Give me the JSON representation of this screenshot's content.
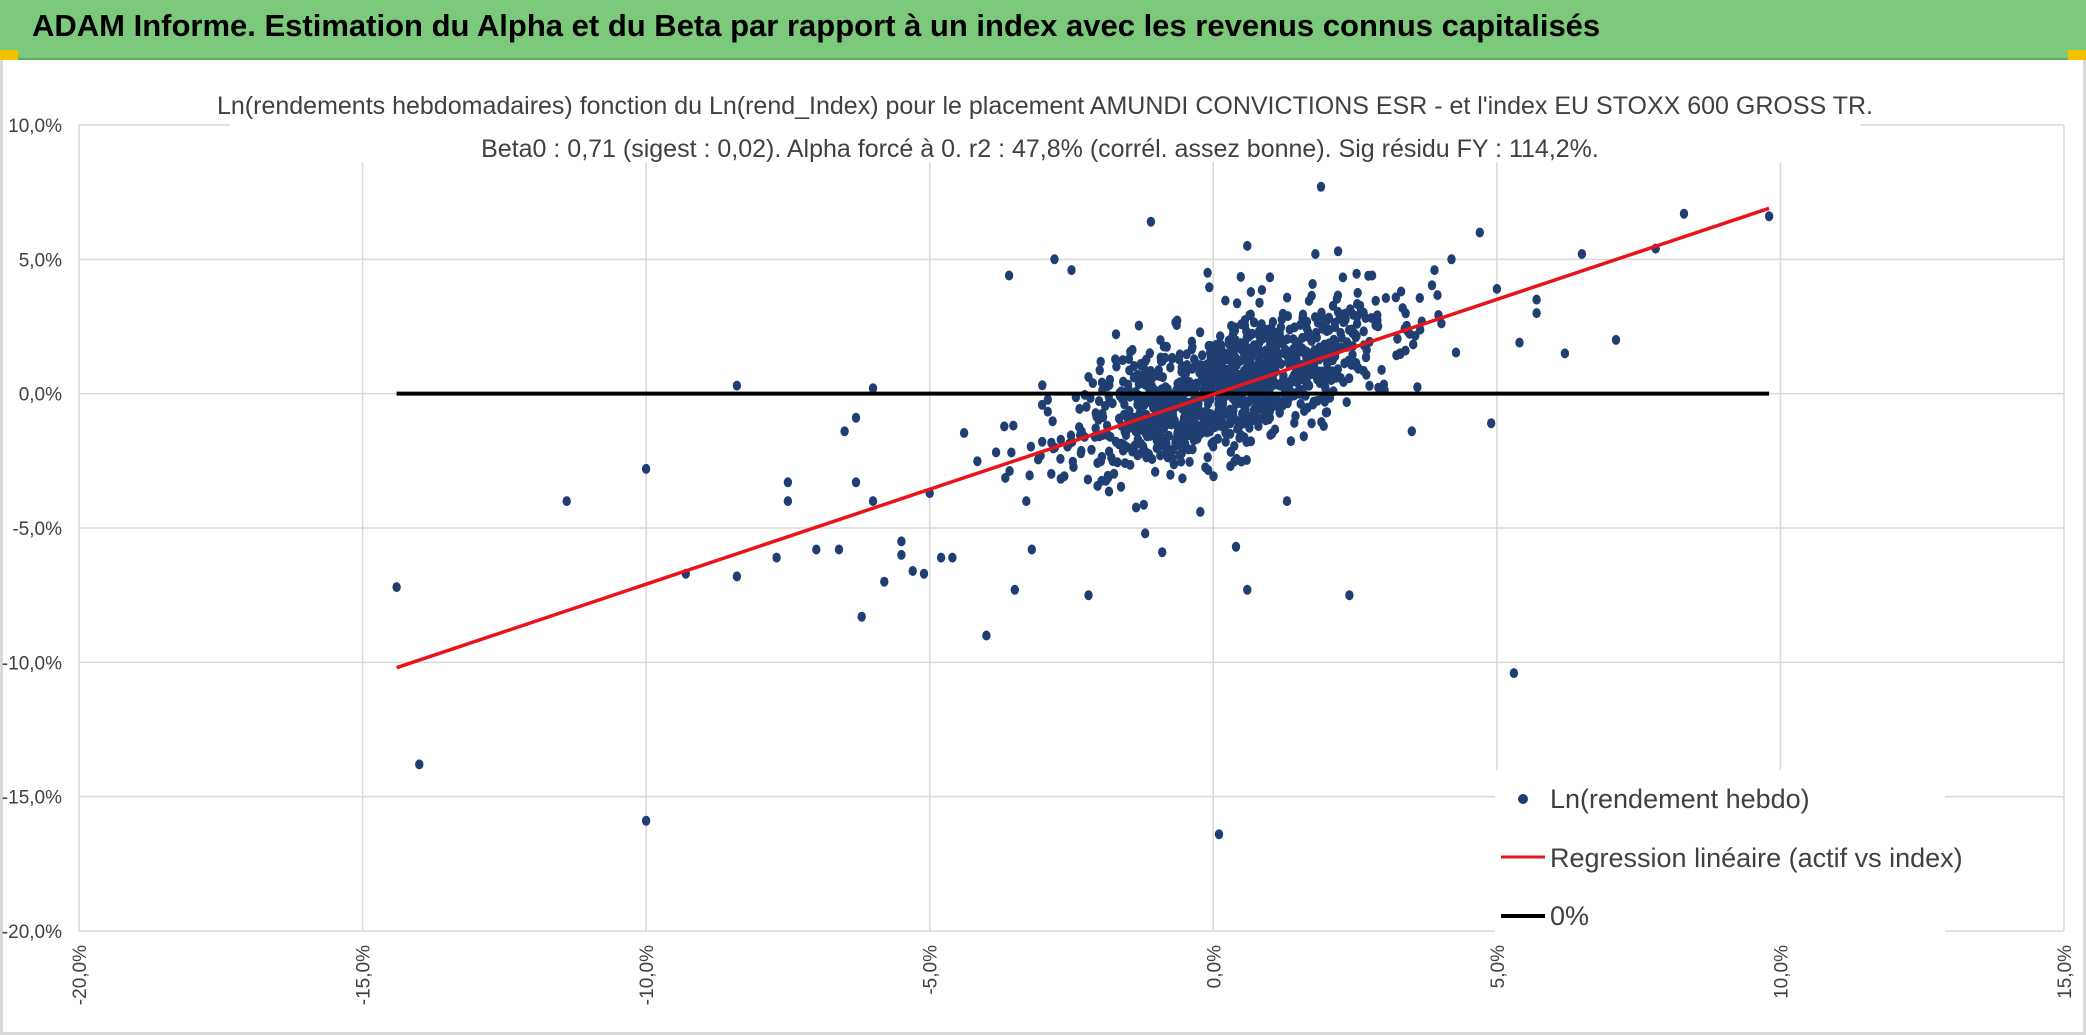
{
  "header": {
    "title": "ADAM Informe. Estimation du Alpha et du Beta par rapport à un index avec les revenus connus capitalisés",
    "background": "#7dc97b",
    "corner_color": "#f2c200"
  },
  "chart_data": {
    "type": "scatter",
    "title": "Ln(rendements hebdomadaires) fonction du Ln(rend_Index) pour le placement AMUNDI CONVICTIONS ESR -  et l'index EU STOXX 600 GROSS TR.",
    "subtitle": "Beta0 : 0,71 (sigest : 0,02). Alpha forcé à 0. r2 : 47,8% (corrél. assez bonne). Sig résidu FY : 114,2%.",
    "xlabel": "",
    "ylabel": "",
    "xlim": [
      -20,
      15
    ],
    "ylim": [
      -20,
      10
    ],
    "x_ticks": [
      -20,
      -15,
      -10,
      -5,
      0,
      5,
      10,
      15
    ],
    "y_ticks": [
      10,
      5,
      0,
      -5,
      -10,
      -15,
      -20
    ],
    "x_tick_labels": [
      "-20,0%",
      "-15,0%",
      "-10,0%",
      "-5,0%",
      "0,0%",
      "5,0%",
      "10,0%",
      "15,0%"
    ],
    "y_tick_labels": [
      "10,0%",
      "5,0%",
      "0,0%",
      "-5,0%",
      "-10,0%",
      "-15,0%",
      "-20,0%"
    ],
    "grid": true,
    "legend_position": "bottom-right",
    "series": [
      {
        "name": "Ln(rendement hebdo)",
        "kind": "scatter",
        "color": "#1f3f73",
        "outliers": [
          [
            -14.4,
            -7.2
          ],
          [
            -14.0,
            -13.8
          ],
          [
            -11.4,
            -4.0
          ],
          [
            -10.0,
            -15.9
          ],
          [
            -10.0,
            -2.8
          ],
          [
            -9.3,
            -6.7
          ],
          [
            -8.4,
            0.3
          ],
          [
            -8.4,
            -6.8
          ],
          [
            -7.7,
            -6.1
          ],
          [
            -7.5,
            -3.3
          ],
          [
            -7.5,
            -4.0
          ],
          [
            -7.0,
            -5.8
          ],
          [
            -6.6,
            -5.8
          ],
          [
            -6.5,
            -1.4
          ],
          [
            -6.3,
            -0.9
          ],
          [
            -6.3,
            -3.3
          ],
          [
            -6.2,
            -8.3
          ],
          [
            -6.0,
            0.2
          ],
          [
            -6.0,
            -4.0
          ],
          [
            -5.8,
            -7.0
          ],
          [
            -5.5,
            -5.5
          ],
          [
            -5.5,
            -6.0
          ],
          [
            -5.3,
            -6.6
          ],
          [
            -5.1,
            -6.7
          ],
          [
            -5.0,
            -3.7
          ],
          [
            -4.8,
            -6.1
          ],
          [
            -4.6,
            -6.1
          ],
          [
            -4.0,
            -9.0
          ],
          [
            -3.6,
            4.4
          ],
          [
            -3.5,
            -7.3
          ],
          [
            -3.2,
            -5.8
          ],
          [
            -2.8,
            5.0
          ],
          [
            -2.5,
            4.6
          ],
          [
            -2.2,
            -7.5
          ],
          [
            -1.2,
            -5.2
          ],
          [
            -1.1,
            6.4
          ],
          [
            -0.9,
            -5.9
          ],
          [
            0.1,
            -16.4
          ],
          [
            0.4,
            -5.7
          ],
          [
            0.6,
            -7.3
          ],
          [
            1.3,
            -4.0
          ],
          [
            1.9,
            7.7
          ],
          [
            2.4,
            -7.5
          ],
          [
            3.5,
            -1.4
          ],
          [
            4.9,
            -1.1
          ],
          [
            5.0,
            3.9
          ],
          [
            5.3,
            -10.4
          ],
          [
            5.4,
            1.9
          ],
          [
            5.7,
            3.5
          ],
          [
            5.7,
            3.0
          ],
          [
            6.2,
            1.5
          ],
          [
            6.5,
            5.2
          ],
          [
            7.1,
            2.0
          ],
          [
            7.8,
            5.4
          ],
          [
            8.3,
            6.7
          ],
          [
            9.8,
            6.6
          ],
          [
            4.7,
            6.0
          ],
          [
            4.2,
            5.0
          ],
          [
            3.9,
            4.6
          ],
          [
            2.8,
            4.4
          ],
          [
            0.6,
            5.5
          ],
          [
            -0.1,
            4.5
          ],
          [
            1.8,
            5.2
          ],
          [
            2.2,
            5.3
          ]
        ],
        "cluster": {
          "count": 1150,
          "center_x": 0.2,
          "sd_x": 1.45,
          "slope": 0.71,
          "resid_sd": 1.15,
          "seed": 20240501
        }
      },
      {
        "name": "Regression linéaire (actif vs index)",
        "kind": "line",
        "color": "#e8141a",
        "points": [
          [
            -14.4,
            -10.2
          ],
          [
            9.8,
            6.9
          ]
        ]
      },
      {
        "name": "0%",
        "kind": "line",
        "color": "#000000",
        "points": [
          [
            -14.4,
            0.0
          ],
          [
            9.8,
            0.0
          ]
        ]
      }
    ]
  }
}
